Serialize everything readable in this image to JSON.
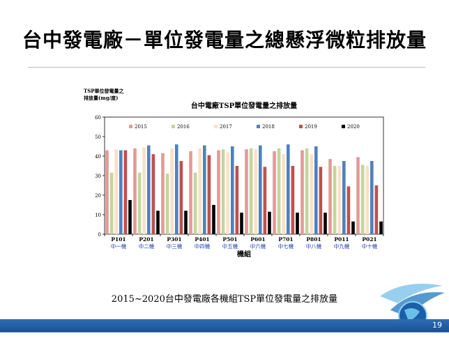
{
  "slide": {
    "title": "台中發電廠－單位發電量之總懸浮微粒排放量",
    "caption": "2015~2020台中發電廠各機組TSP單位發電量之排放量",
    "page_number": "19"
  },
  "chart_data": {
    "type": "bar",
    "title": "台中電廠TSP單位發電量之排放量",
    "ylabel_line1": "TSP單位發電量之",
    "ylabel_line2": "排放量(mg/度)",
    "xlabel": "機組",
    "ylim": [
      0,
      60
    ],
    "yticks": [
      0,
      10,
      20,
      30,
      40,
      50,
      60
    ],
    "legend_position": "top",
    "categories": [
      "P101",
      "P201",
      "P301",
      "P401",
      "P501",
      "P601",
      "P701",
      "P801",
      "P011",
      "P021"
    ],
    "category_sublabels": [
      "中一機",
      "中二機",
      "中三機",
      "中四機",
      "中五機",
      "中六機",
      "中七機",
      "中八機",
      "中九機",
      "中十機"
    ],
    "series": [
      {
        "name": "2015",
        "color": "#e39a96",
        "values": [
          43,
          44,
          41.5,
          42.5,
          43,
          43.5,
          42.5,
          43,
          38.5,
          39.5
        ]
      },
      {
        "name": "2016",
        "color": "#c3d69b",
        "values": [
          31.5,
          31.5,
          31,
          31.5,
          43.5,
          44,
          44,
          44,
          35,
          35.5
        ]
      },
      {
        "name": "2017",
        "color": "#fbe0c6",
        "values": [
          43.5,
          44.5,
          44,
          44,
          42,
          43.5,
          41,
          41,
          35,
          35
        ]
      },
      {
        "name": "2018",
        "color": "#4f81bd",
        "values": [
          43,
          45.5,
          46,
          45.5,
          45,
          45.5,
          46,
          45,
          37.5,
          37.5
        ]
      },
      {
        "name": "2019",
        "color": "#c0504d",
        "values": [
          43,
          41,
          37.5,
          40.5,
          35,
          34.5,
          35,
          34.5,
          24.5,
          25
        ]
      },
      {
        "name": "2020",
        "color": "#000000",
        "values": [
          17.5,
          12,
          12,
          15,
          11,
          11.5,
          11,
          11,
          6.5,
          6.5
        ]
      }
    ]
  }
}
